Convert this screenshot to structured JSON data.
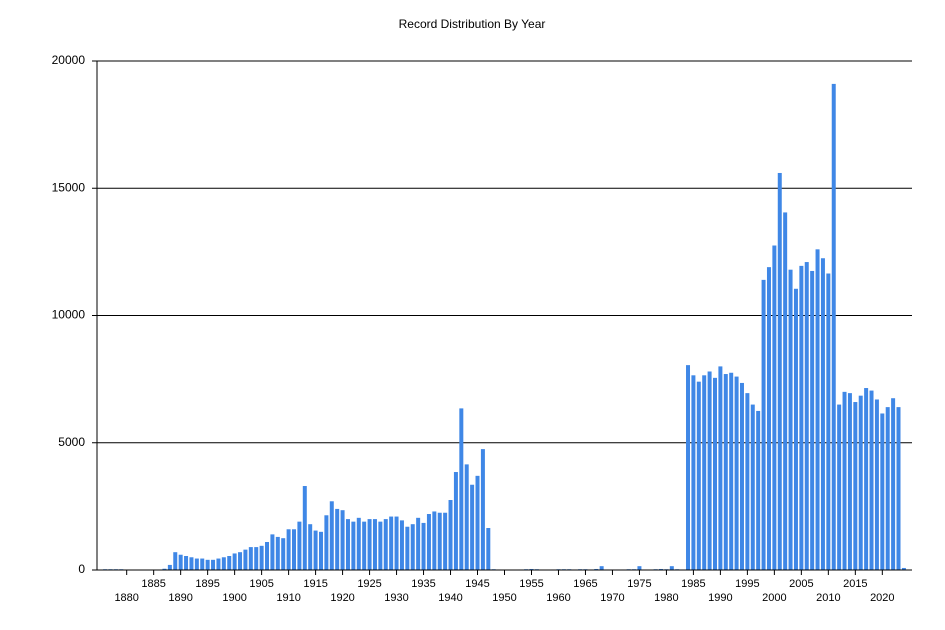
{
  "chart_data": {
    "type": "bar",
    "title": "Record Distribution By Year",
    "color": "#3f87e6",
    "grid": true,
    "x": [
      1876,
      1877,
      1878,
      1879,
      1880,
      1881,
      1882,
      1883,
      1884,
      1885,
      1886,
      1887,
      1888,
      1889,
      1890,
      1891,
      1892,
      1893,
      1894,
      1895,
      1896,
      1897,
      1898,
      1899,
      1900,
      1901,
      1902,
      1903,
      1904,
      1905,
      1906,
      1907,
      1908,
      1909,
      1910,
      1911,
      1912,
      1913,
      1914,
      1915,
      1916,
      1917,
      1918,
      1919,
      1920,
      1921,
      1922,
      1923,
      1924,
      1925,
      1926,
      1927,
      1928,
      1929,
      1930,
      1931,
      1932,
      1933,
      1934,
      1935,
      1936,
      1937,
      1938,
      1939,
      1940,
      1941,
      1942,
      1943,
      1944,
      1945,
      1946,
      1947,
      1948,
      1949,
      1950,
      1951,
      1952,
      1953,
      1954,
      1955,
      1956,
      1957,
      1958,
      1959,
      1960,
      1961,
      1962,
      1963,
      1964,
      1965,
      1966,
      1967,
      1968,
      1969,
      1970,
      1971,
      1972,
      1973,
      1974,
      1975,
      1976,
      1977,
      1978,
      1979,
      1980,
      1981,
      1982,
      1983,
      1984,
      1985,
      1986,
      1987,
      1988,
      1989,
      1990,
      1991,
      1992,
      1993,
      1994,
      1995,
      1996,
      1997,
      1998,
      1999,
      2000,
      2001,
      2002,
      2003,
      2004,
      2005,
      2006,
      2007,
      2008,
      2009,
      2010,
      2011,
      2012,
      2013,
      2014,
      2015,
      2016,
      2017,
      2018,
      2019,
      2020,
      2021,
      2022,
      2023,
      2024
    ],
    "values": [
      30,
      30,
      30,
      30,
      0,
      0,
      0,
      0,
      0,
      0,
      0,
      50,
      200,
      700,
      600,
      550,
      500,
      450,
      450,
      400,
      400,
      450,
      500,
      550,
      650,
      700,
      800,
      900,
      900,
      950,
      1100,
      1400,
      1300,
      1250,
      1600,
      1600,
      1900,
      3300,
      1800,
      1550,
      1500,
      2150,
      2700,
      2400,
      2350,
      2000,
      1900,
      2050,
      1900,
      2000,
      2000,
      1900,
      2000,
      2100,
      2100,
      1950,
      1700,
      1800,
      2050,
      1850,
      2200,
      2300,
      2250,
      2250,
      2750,
      3850,
      6350,
      4150,
      3350,
      3700,
      4750,
      1650,
      30,
      20,
      0,
      0,
      0,
      20,
      30,
      40,
      30,
      0,
      0,
      20,
      30,
      30,
      30,
      20,
      30,
      30,
      20,
      40,
      150,
      20,
      20,
      20,
      20,
      30,
      30,
      150,
      20,
      0,
      30,
      40,
      30,
      150,
      30,
      20,
      8050,
      7650,
      7400,
      7650,
      7800,
      7550,
      8000,
      7700,
      7750,
      7600,
      7350,
      6950,
      6500,
      6250,
      11400,
      11900,
      12750,
      15600,
      14050,
      11800,
      11050,
      11950,
      12100,
      11750,
      12600,
      12250,
      11650,
      19100,
      6500,
      7000,
      6950,
      6600,
      6850,
      7150,
      7050,
      6700,
      6150,
      6400,
      6750,
      6400,
      80
    ],
    "xlim": [
      1874.5,
      2025.5
    ],
    "xticks": [
      1880,
      1885,
      1890,
      1895,
      1900,
      1905,
      1910,
      1915,
      1920,
      1925,
      1930,
      1935,
      1940,
      1945,
      1950,
      1955,
      1960,
      1965,
      1970,
      1975,
      1980,
      1985,
      1990,
      1995,
      2000,
      2005,
      2010,
      2015,
      2020
    ],
    "ylim": [
      0,
      20000
    ],
    "yticks": [
      0,
      5000,
      10000,
      15000,
      20000
    ]
  }
}
